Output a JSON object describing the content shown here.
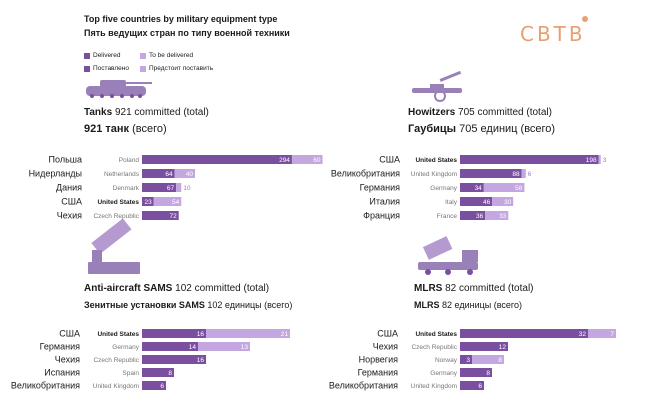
{
  "header": {
    "title": "Top five countries by military equipment type",
    "subtitle": "Пять ведущих стран по типу военной техники",
    "logo": "CBTB"
  },
  "legend": {
    "delivered": "Delivered",
    "to_be_delivered": "To be delivered",
    "delivered_ru": "Поставлено",
    "to_be_delivered_ru": "Предстоит поставить"
  },
  "colors": {
    "delivered": "#7b4fa0",
    "to_be_delivered": "#c4a6e0",
    "logo": "#e8a070",
    "icon": "#9a80b8"
  },
  "panels": [
    {
      "id": "tanks",
      "icon": "tank-icon",
      "title_en": "Tanks",
      "total_en": "921 committed (total)",
      "title_ru": "921 танк",
      "total_ru": "(всего)"
    },
    {
      "id": "howitzers",
      "icon": "howitzer-icon",
      "title_en": "Howitzers",
      "total_en": "705 committed (total)",
      "title_ru": "Гаубицы",
      "total_ru": "705 единиц (всего)"
    },
    {
      "id": "sams",
      "icon": "sam-launcher-icon",
      "title_en": "Anti-aircraft SAMS",
      "total_en": "102 committed (total)",
      "title_ru": "Зенитные установки SAMS",
      "total_ru": "102 единицы (всего)"
    },
    {
      "id": "mlrs",
      "icon": "mlrs-icon",
      "title_en": "MLRS",
      "total_en": "82 committed (total)",
      "title_ru": "MLRS",
      "total_ru": "82 единицы (всего)"
    }
  ],
  "chart_data": [
    {
      "type": "bar",
      "id": "tanks",
      "categories": [
        "Poland",
        "Netherlands",
        "Denmark",
        "United States",
        "Czech Republic"
      ],
      "categories_ru": [
        "Польша",
        "Нидерланды",
        "Дания",
        "США",
        "Чехия"
      ],
      "series": [
        {
          "name": "Delivered",
          "values": [
            294,
            64,
            67,
            23,
            72
          ]
        },
        {
          "name": "To be delivered",
          "values": [
            60,
            40,
            10,
            54,
            0
          ]
        }
      ]
    },
    {
      "type": "bar",
      "id": "howitzers",
      "categories": [
        "United States",
        "United Kingdom",
        "Germany",
        "Italy",
        "France"
      ],
      "categories_ru": [
        "США",
        "Великобритания",
        "Германия",
        "Италия",
        "Франция"
      ],
      "series": [
        {
          "name": "Delivered",
          "values": [
            198,
            88,
            34,
            46,
            36
          ]
        },
        {
          "name": "To be delivered",
          "values": [
            3,
            6,
            58,
            30,
            33
          ]
        }
      ]
    },
    {
      "type": "bar",
      "id": "sams",
      "categories": [
        "United States",
        "Germany",
        "Czech Republic",
        "Spain",
        "United Kingdom"
      ],
      "categories_ru": [
        "США",
        "Германия",
        "Чехия",
        "Испания",
        "Великобритания"
      ],
      "series": [
        {
          "name": "Delivered",
          "values": [
            16,
            14,
            16,
            8,
            6
          ]
        },
        {
          "name": "To be delivered",
          "values": [
            21,
            13,
            0,
            0,
            0
          ]
        }
      ]
    },
    {
      "type": "bar",
      "id": "mlrs",
      "categories": [
        "United States",
        "Czech Republic",
        "Norway",
        "Germany",
        "United Kingdom"
      ],
      "categories_ru": [
        "США",
        "Чехия",
        "Норвегия",
        "Германия",
        "Великобритания"
      ],
      "series": [
        {
          "name": "Delivered",
          "values": [
            32,
            12,
            3,
            8,
            6
          ]
        },
        {
          "name": "To be delivered",
          "values": [
            7,
            0,
            8,
            0,
            0
          ]
        }
      ]
    }
  ]
}
